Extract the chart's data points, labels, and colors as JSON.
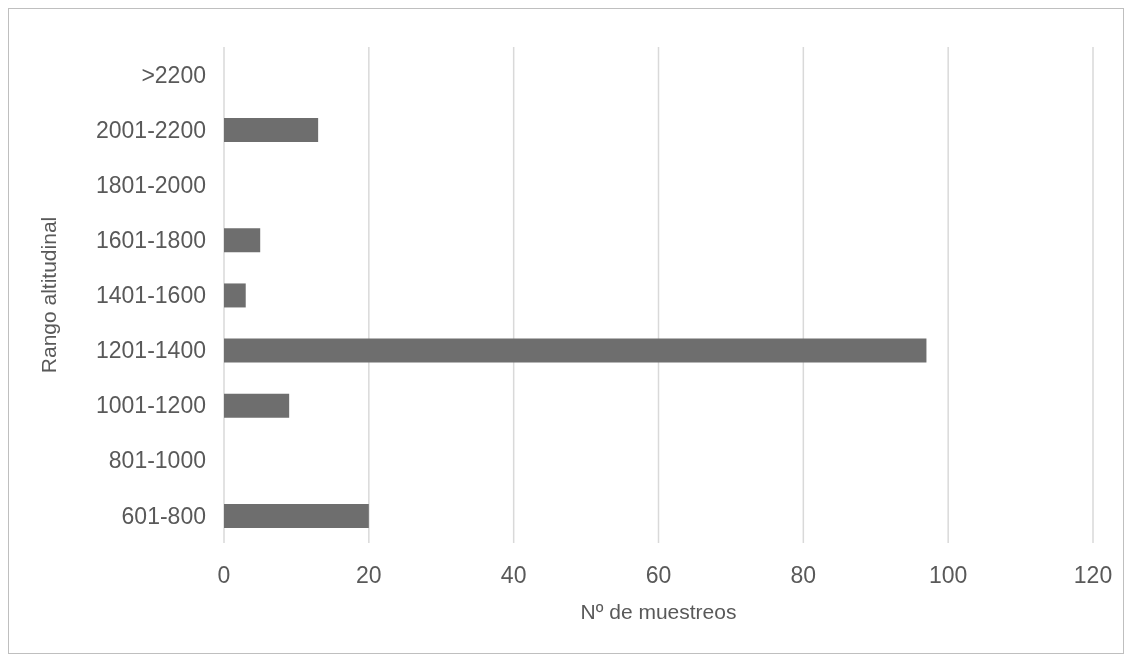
{
  "chart_data": {
    "type": "bar",
    "orientation": "horizontal",
    "xlabel": "Nº de muestreos",
    "ylabel": "Rango altitudinal",
    "categories": [
      ">2200",
      "2001-2200",
      "1801-2000",
      "1601-1800",
      "1401-1600",
      "1201-1400",
      "1001-1200",
      "801-1000",
      "601-800"
    ],
    "values": [
      0,
      13,
      0,
      5,
      3,
      97,
      9,
      0,
      20
    ],
    "color": "#6e6e6e",
    "xlim": [
      0,
      120
    ],
    "xticks": [
      0,
      20,
      40,
      60,
      80,
      100,
      120
    ],
    "grid": "x",
    "legend": false
  }
}
